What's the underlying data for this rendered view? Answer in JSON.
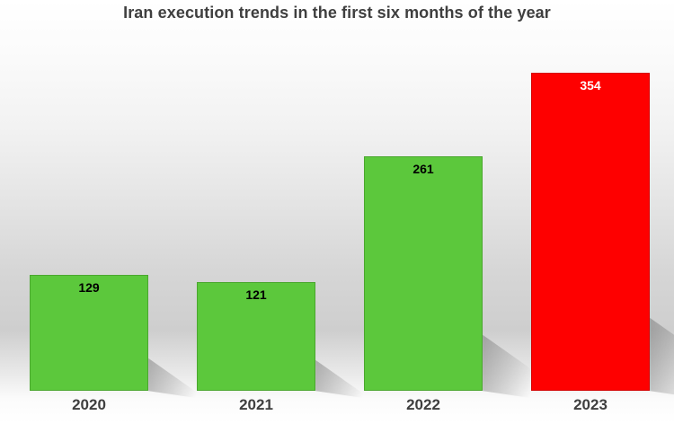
{
  "chart_data": {
    "type": "bar",
    "title": "Iran execution trends in the first six months of the year",
    "categories": [
      "2020",
      "2021",
      "2022",
      "2023"
    ],
    "values": [
      129,
      121,
      261,
      354
    ],
    "bar_colors": [
      "#5cc83c",
      "#5cc83c",
      "#5cc83c",
      "#fe0000"
    ],
    "bar_border_colors": [
      "#4aa72e",
      "#4aa72e",
      "#4aa72e",
      "#d40000"
    ],
    "value_label_colors": [
      "#000000",
      "#000000",
      "#000000",
      "#ffffff"
    ],
    "xlabel": "",
    "ylabel": "",
    "ylim": [
      0,
      380
    ],
    "grid": false,
    "legend": false,
    "data_labels": "value shown on top area of each bar"
  },
  "colors": {
    "title_text": "#3f3f3f",
    "axis_text": "#3f3f3f",
    "background_top": "#ffffff",
    "background_middle": "#cecece",
    "background_bottom": "#ffffff",
    "shadow": "#6e6e6e"
  }
}
